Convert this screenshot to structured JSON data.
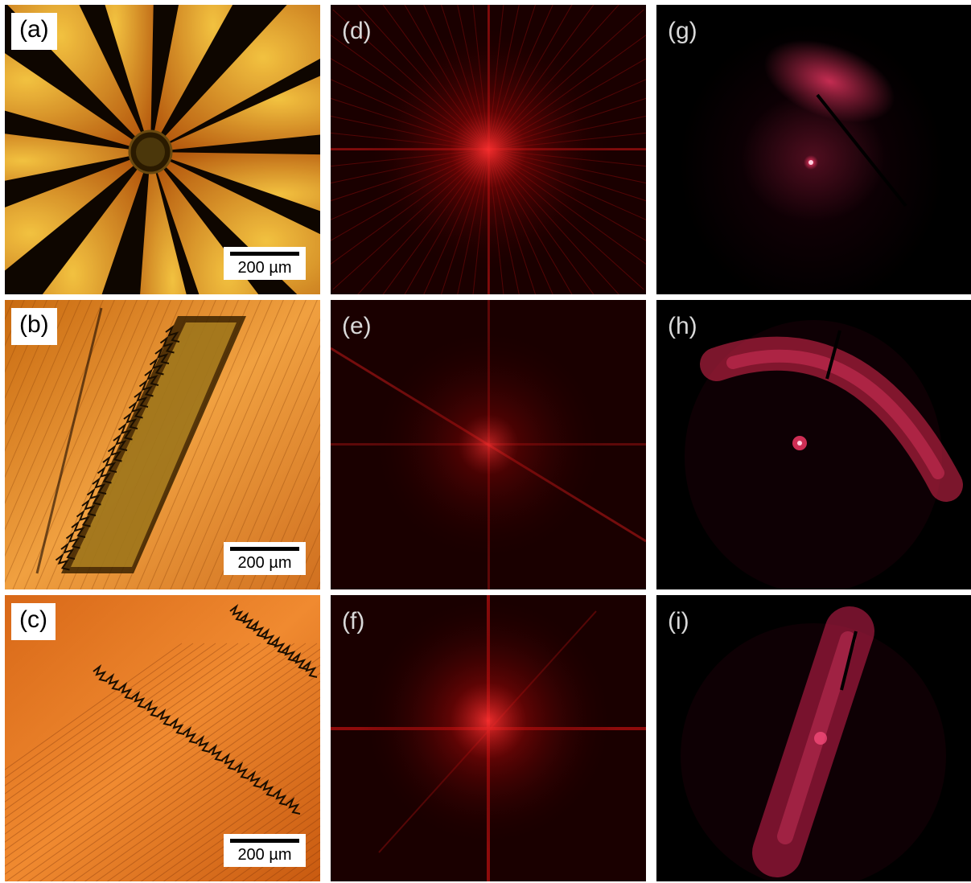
{
  "panels": {
    "a": {
      "label": "(a)",
      "scale_bar": "200 µm"
    },
    "b": {
      "label": "(b)",
      "scale_bar": "200 µm"
    },
    "c": {
      "label": "(c)",
      "scale_bar": "200 µm"
    },
    "d": {
      "label": "(d)"
    },
    "e": {
      "label": "(e)"
    },
    "f": {
      "label": "(f)"
    },
    "g": {
      "label": "(g)"
    },
    "h": {
      "label": "(h)"
    },
    "i": {
      "label": "(i)"
    }
  },
  "colors": {
    "micrograph_background": "#1a0a00",
    "micrograph_orange": "#e07a20",
    "micrograph_yellow": "#ffd24a",
    "fft_red": "#ff2020",
    "diffraction_red": "#ff3060"
  }
}
